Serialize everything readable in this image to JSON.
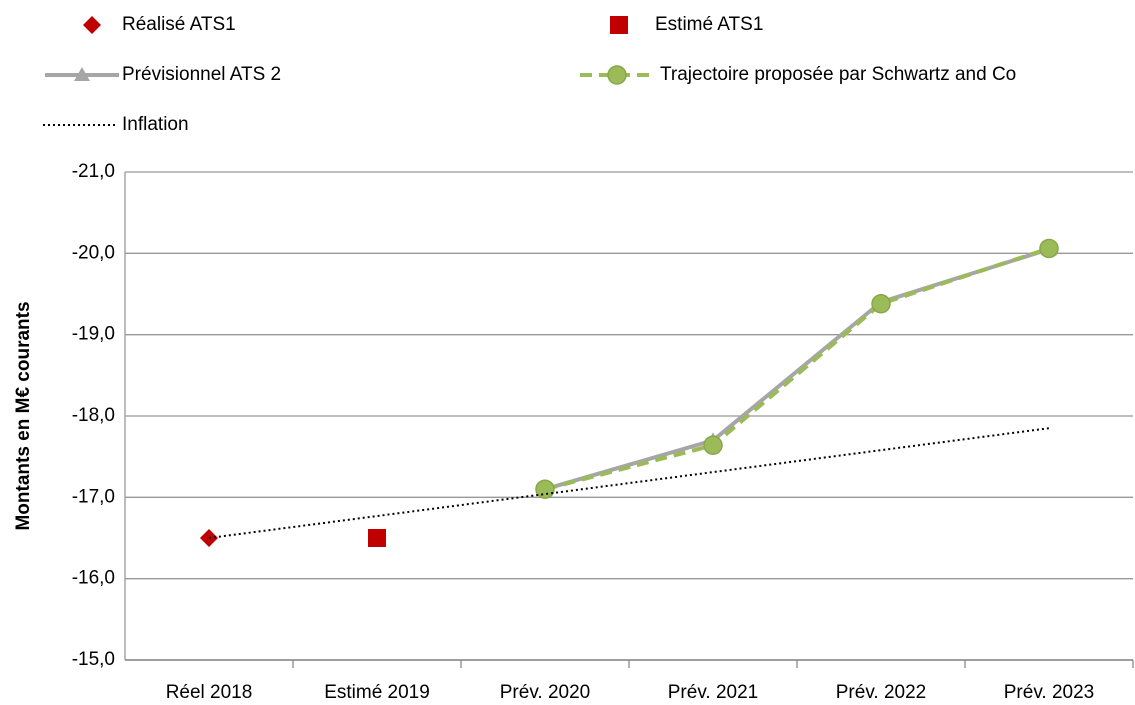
{
  "chart_data": {
    "type": "line",
    "y_label": "Montants en M€ courants",
    "categories": [
      "Réel 2018",
      "Estimé 2019",
      "Prév. 2020",
      "Prév. 2021",
      "Prév. 2022",
      "Prév. 2023"
    ],
    "ylim": [
      -15,
      -21
    ],
    "yticks": [
      {
        "value": -21,
        "label": "-21,0"
      },
      {
        "value": -20,
        "label": "-20,0"
      },
      {
        "value": -19,
        "label": "-19,0"
      },
      {
        "value": -18,
        "label": "-18,0"
      },
      {
        "value": -17,
        "label": "-17,0"
      },
      {
        "value": -16,
        "label": "-16,0"
      },
      {
        "value": -15,
        "label": "-15,0"
      }
    ],
    "grid": true,
    "series": [
      {
        "name": "Réalisé ATS1",
        "color": "#c00000",
        "marker": "diamond",
        "line": "none",
        "values": [
          -16.5,
          null,
          null,
          null,
          null,
          null
        ]
      },
      {
        "name": "Estimé ATS1",
        "color": "#c00000",
        "marker": "square",
        "line": "none",
        "values": [
          null,
          -16.5,
          null,
          null,
          null,
          null
        ]
      },
      {
        "name": "Prévisionnel ATS 2",
        "color": "#a6a6a6",
        "marker": "triangle",
        "line": "solid",
        "values": [
          null,
          null,
          -17.1,
          -17.7,
          -19.4,
          -20.05
        ]
      },
      {
        "name": "Trajectoire proposée par Schwartz and Co",
        "color": "#9bbb59",
        "marker": "circle",
        "line": "dashed",
        "values": [
          null,
          null,
          -17.1,
          -17.64,
          -19.38,
          -20.06
        ]
      },
      {
        "name": "Inflation",
        "color": "#000000",
        "marker": "none",
        "line": "dotted",
        "values": [
          -16.5,
          -16.77,
          -17.04,
          -17.31,
          -17.58,
          -17.85
        ]
      }
    ]
  }
}
